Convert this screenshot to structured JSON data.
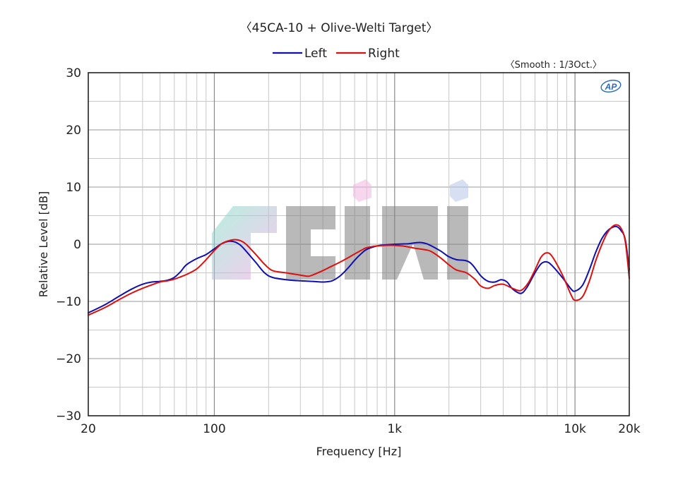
{
  "chart_data": {
    "type": "line",
    "title": "〈45CA-10 + Olive-Welti Target〉",
    "annotation": "〈Smooth : 1/3Oct.〉",
    "logo": "AP",
    "watermark": "ciri",
    "xlabel": "Frequency [Hz]",
    "ylabel": "Relative Level [dB]",
    "x_scale": "log",
    "xlim": [
      20,
      20000
    ],
    "ylim": [
      -30,
      30
    ],
    "x_ticks": [
      {
        "value": 20,
        "label": "20"
      },
      {
        "value": 100,
        "label": "100"
      },
      {
        "value": 1000,
        "label": "1k"
      },
      {
        "value": 10000,
        "label": "10k"
      },
      {
        "value": 20000,
        "label": "20k"
      }
    ],
    "y_ticks": [
      {
        "value": 30,
        "label": "30"
      },
      {
        "value": 20,
        "label": "20"
      },
      {
        "value": 10,
        "label": "10"
      },
      {
        "value": 0,
        "label": "0"
      },
      {
        "value": -10,
        "label": "−10"
      },
      {
        "value": -20,
        "label": "−20"
      },
      {
        "value": -30,
        "label": "−30"
      }
    ],
    "grid": true,
    "legend_position": "top-center",
    "series": [
      {
        "name": "Left",
        "color": "#1010b0",
        "points": [
          [
            20,
            -12
          ],
          [
            25,
            -10.5
          ],
          [
            30,
            -9
          ],
          [
            35,
            -7.8
          ],
          [
            40,
            -7
          ],
          [
            45,
            -6.6
          ],
          [
            50,
            -6.5
          ],
          [
            55,
            -6.3
          ],
          [
            60,
            -5.8
          ],
          [
            65,
            -4.8
          ],
          [
            70,
            -3.6
          ],
          [
            80,
            -2.5
          ],
          [
            90,
            -1.8
          ],
          [
            100,
            -0.8
          ],
          [
            110,
            0.1
          ],
          [
            120,
            0.5
          ],
          [
            130,
            0.4
          ],
          [
            140,
            -0.2
          ],
          [
            150,
            -1.2
          ],
          [
            170,
            -3.2
          ],
          [
            190,
            -5
          ],
          [
            210,
            -5.8
          ],
          [
            250,
            -6.2
          ],
          [
            300,
            -6.4
          ],
          [
            350,
            -6.5
          ],
          [
            400,
            -6.6
          ],
          [
            450,
            -6.4
          ],
          [
            500,
            -5.5
          ],
          [
            550,
            -4.2
          ],
          [
            600,
            -2.8
          ],
          [
            650,
            -1.7
          ],
          [
            700,
            -0.9
          ],
          [
            800,
            -0.3
          ],
          [
            900,
            -0.1
          ],
          [
            1000,
            0
          ],
          [
            1100,
            0.05
          ],
          [
            1200,
            0.1
          ],
          [
            1300,
            0.25
          ],
          [
            1400,
            0.3
          ],
          [
            1500,
            0.1
          ],
          [
            1600,
            -0.3
          ],
          [
            1800,
            -1.2
          ],
          [
            2000,
            -2.2
          ],
          [
            2200,
            -2.7
          ],
          [
            2500,
            -2.9
          ],
          [
            2700,
            -3.6
          ],
          [
            3000,
            -5.5
          ],
          [
            3300,
            -6.5
          ],
          [
            3600,
            -6.6
          ],
          [
            3900,
            -6.2
          ],
          [
            4200,
            -6.6
          ],
          [
            4500,
            -7.8
          ],
          [
            5000,
            -8.6
          ],
          [
            5400,
            -7.6
          ],
          [
            6000,
            -5
          ],
          [
            6500,
            -3.4
          ],
          [
            7000,
            -3.1
          ],
          [
            7500,
            -3.8
          ],
          [
            8500,
            -5.8
          ],
          [
            9500,
            -7.8
          ],
          [
            10000,
            -8.2
          ],
          [
            11000,
            -7.2
          ],
          [
            12000,
            -4.5
          ],
          [
            13000,
            -1.5
          ],
          [
            14000,
            0.8
          ],
          [
            15000,
            2.2
          ],
          [
            16000,
            2.9
          ],
          [
            17000,
            3.1
          ],
          [
            18000,
            2.4
          ],
          [
            19000,
            0.8
          ],
          [
            20000,
            -4.5
          ]
        ]
      },
      {
        "name": "Right",
        "color": "#dd1010",
        "points": [
          [
            20,
            -12.4
          ],
          [
            25,
            -11
          ],
          [
            30,
            -9.6
          ],
          [
            35,
            -8.5
          ],
          [
            40,
            -7.7
          ],
          [
            45,
            -7.1
          ],
          [
            50,
            -6.6
          ],
          [
            55,
            -6.4
          ],
          [
            60,
            -6.1
          ],
          [
            65,
            -5.7
          ],
          [
            70,
            -5.3
          ],
          [
            80,
            -4.3
          ],
          [
            90,
            -2.7
          ],
          [
            100,
            -1.1
          ],
          [
            110,
            0.1
          ],
          [
            120,
            0.6
          ],
          [
            130,
            0.8
          ],
          [
            140,
            0.6
          ],
          [
            150,
            0
          ],
          [
            170,
            -1.8
          ],
          [
            190,
            -3.5
          ],
          [
            210,
            -4.6
          ],
          [
            250,
            -5
          ],
          [
            300,
            -5.4
          ],
          [
            330,
            -5.6
          ],
          [
            350,
            -5.4
          ],
          [
            400,
            -4.6
          ],
          [
            450,
            -3.8
          ],
          [
            500,
            -3.1
          ],
          [
            550,
            -2.4
          ],
          [
            600,
            -1.7
          ],
          [
            650,
            -1.1
          ],
          [
            700,
            -0.6
          ],
          [
            800,
            -0.3
          ],
          [
            900,
            -0.2
          ],
          [
            1000,
            -0.2
          ],
          [
            1100,
            -0.3
          ],
          [
            1200,
            -0.5
          ],
          [
            1300,
            -0.7
          ],
          [
            1400,
            -0.85
          ],
          [
            1500,
            -1
          ],
          [
            1600,
            -1.3
          ],
          [
            1800,
            -2.4
          ],
          [
            2000,
            -3.6
          ],
          [
            2200,
            -4.5
          ],
          [
            2500,
            -5
          ],
          [
            2800,
            -6.2
          ],
          [
            3000,
            -7.3
          ],
          [
            3300,
            -7.7
          ],
          [
            3600,
            -7.2
          ],
          [
            4000,
            -7
          ],
          [
            4500,
            -7.7
          ],
          [
            5000,
            -8.1
          ],
          [
            5500,
            -6.8
          ],
          [
            6000,
            -4.5
          ],
          [
            6500,
            -2.2
          ],
          [
            7000,
            -1.5
          ],
          [
            7500,
            -2.2
          ],
          [
            8500,
            -5.3
          ],
          [
            9500,
            -8.8
          ],
          [
            10000,
            -9.8
          ],
          [
            11000,
            -9.2
          ],
          [
            12000,
            -6.5
          ],
          [
            13000,
            -3
          ],
          [
            14000,
            -0.3
          ],
          [
            15000,
            1.8
          ],
          [
            16000,
            3
          ],
          [
            17000,
            3.4
          ],
          [
            18000,
            2.8
          ],
          [
            19000,
            0.5
          ],
          [
            20000,
            -6
          ]
        ]
      }
    ]
  }
}
